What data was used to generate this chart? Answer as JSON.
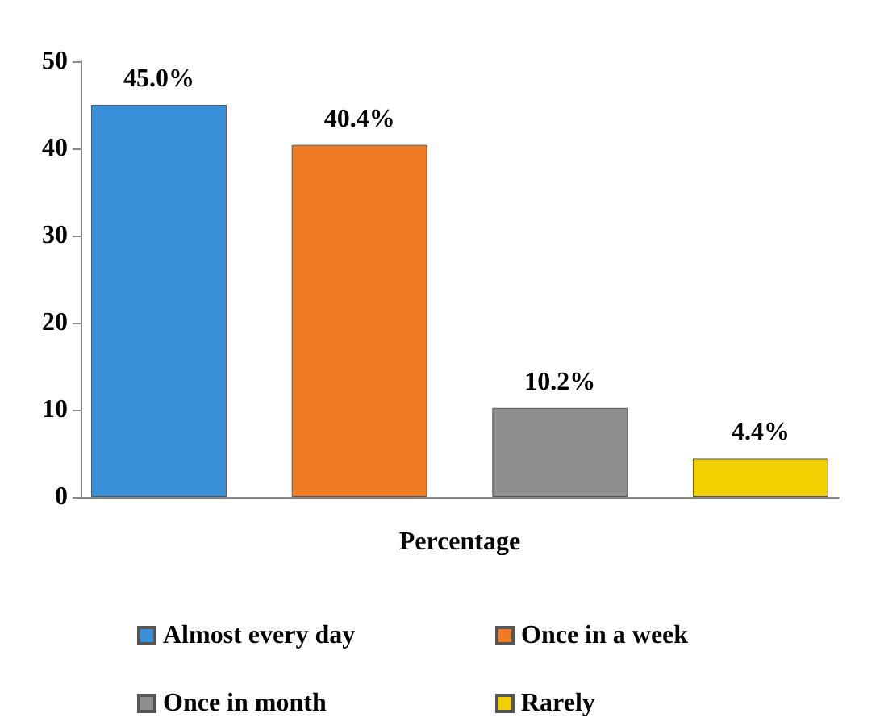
{
  "chart_data": {
    "type": "bar",
    "categories": [
      "Percentage"
    ],
    "series": [
      {
        "name": "Almost every day",
        "color": "#3a8fd9",
        "values": [
          45.0
        ],
        "value_labels": [
          "45.0%"
        ]
      },
      {
        "name": "Once in a week",
        "color": "#f07a22",
        "values": [
          40.4
        ],
        "value_labels": [
          "40.4%"
        ]
      },
      {
        "name": "Once in month",
        "color": "#8f8f8f",
        "values": [
          10.2
        ],
        "value_labels": [
          "10.2%"
        ]
      },
      {
        "name": "Rarely",
        "color": "#f2cf00",
        "values": [
          4.4
        ],
        "value_labels": [
          "4.4%"
        ]
      }
    ],
    "ylim": [
      0,
      50
    ],
    "yticks": [
      0,
      10,
      20,
      30,
      40,
      50
    ],
    "grid": false,
    "legend": "bottom"
  }
}
